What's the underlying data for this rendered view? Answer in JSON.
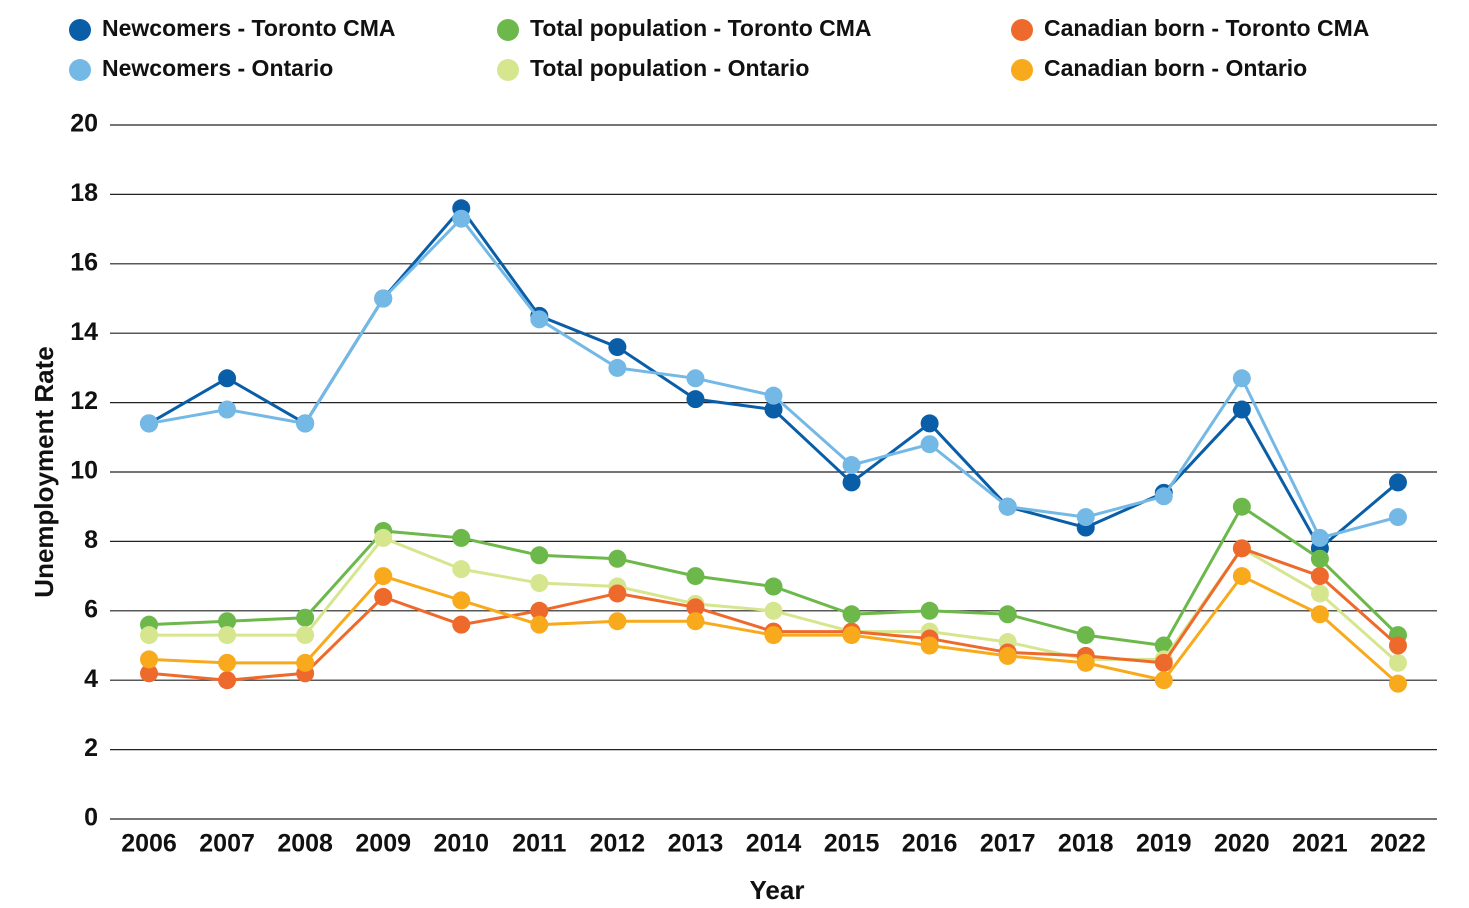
{
  "chart_data": {
    "type": "line",
    "x_label": "Year",
    "y_label": "Unemployment Rate",
    "categories": [
      "2006",
      "2007",
      "2008",
      "2009",
      "2010",
      "2011",
      "2012",
      "2013",
      "2014",
      "2015",
      "2016",
      "2017",
      "2018",
      "2019",
      "2020",
      "2021",
      "2022"
    ],
    "series": [
      {
        "name": "Newcomers - Toronto CMA",
        "color": "#0a5ea8",
        "values": [
          11.4,
          12.7,
          11.4,
          15.0,
          17.6,
          14.5,
          13.6,
          12.1,
          11.8,
          9.7,
          11.4,
          9.0,
          8.4,
          9.4,
          11.8,
          7.8,
          9.7
        ]
      },
      {
        "name": "Newcomers - Ontario",
        "color": "#74b9e6",
        "values": [
          11.4,
          11.8,
          11.4,
          15.0,
          17.3,
          14.4,
          13.0,
          12.7,
          12.2,
          10.2,
          10.8,
          9.0,
          8.7,
          9.3,
          12.7,
          8.1,
          8.7
        ]
      },
      {
        "name": "Total population - Toronto CMA",
        "color": "#6cb84a",
        "values": [
          5.6,
          5.7,
          5.8,
          8.3,
          8.1,
          7.6,
          7.5,
          7.0,
          6.7,
          5.9,
          6.0,
          5.9,
          5.3,
          5.0,
          9.0,
          7.5,
          5.3
        ]
      },
      {
        "name": "Total population - Ontario",
        "color": "#d6e68e",
        "values": [
          5.3,
          5.3,
          5.3,
          8.1,
          7.2,
          6.8,
          6.7,
          6.2,
          6.0,
          5.4,
          5.4,
          5.1,
          4.6,
          4.6,
          7.8,
          6.5,
          4.5
        ]
      },
      {
        "name": "Canadian born - Toronto CMA",
        "color": "#ee6a2c",
        "values": [
          4.2,
          4.0,
          4.2,
          6.4,
          5.6,
          6.0,
          6.5,
          6.1,
          5.4,
          5.4,
          5.2,
          4.8,
          4.7,
          4.5,
          7.8,
          7.0,
          5.0
        ]
      },
      {
        "name": "Canadian born - Ontario",
        "color": "#f8aa1c",
        "values": [
          4.6,
          4.5,
          4.5,
          7.0,
          6.3,
          5.6,
          5.7,
          5.7,
          5.3,
          5.3,
          5.0,
          4.7,
          4.5,
          4.0,
          7.0,
          5.9,
          3.9
        ]
      }
    ],
    "ylim": [
      0,
      20
    ],
    "yticks": [
      0,
      2,
      4,
      6,
      8,
      10,
      12,
      14,
      16,
      18,
      20
    ],
    "grid": true,
    "legend": "top"
  }
}
